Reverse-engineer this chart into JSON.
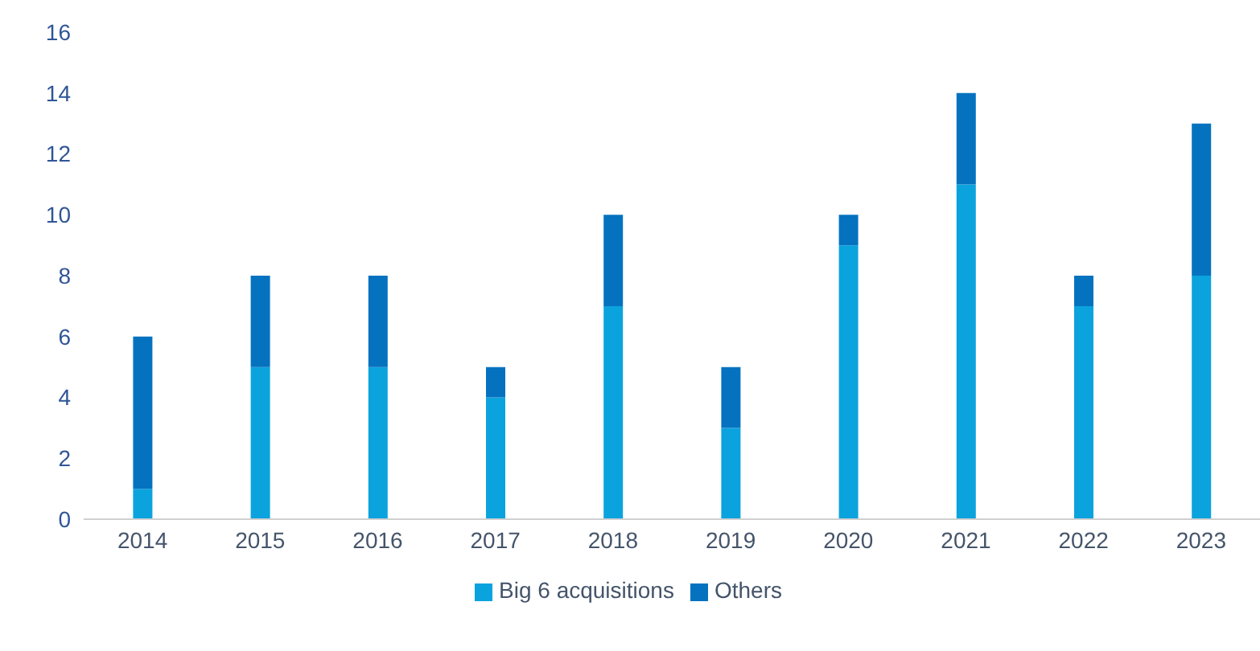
{
  "chart_data": {
    "type": "bar",
    "stacked": true,
    "categories": [
      "2014",
      "2015",
      "2016",
      "2017",
      "2018",
      "2019",
      "2020",
      "2021",
      "2022",
      "2023"
    ],
    "series": [
      {
        "name": "Big 6 acquisitions",
        "color": "#0ba3de",
        "values": [
          1,
          5,
          5,
          4,
          7,
          3,
          9,
          11,
          7,
          8
        ]
      },
      {
        "name": "Others",
        "color": "#0572c0",
        "values": [
          5,
          3,
          3,
          1,
          3,
          2,
          1,
          3,
          1,
          5
        ]
      }
    ],
    "ylim": [
      0,
      16
    ],
    "yticks": [
      0,
      2,
      4,
      6,
      8,
      10,
      12,
      14,
      16
    ],
    "grid": false,
    "legend": "bottom"
  }
}
